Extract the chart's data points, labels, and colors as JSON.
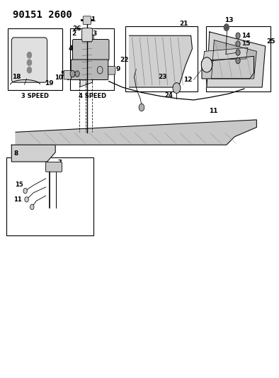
{
  "title": "90151 2600",
  "bg_color": "#ffffff",
  "line_color": "#000000",
  "title_fontsize": 10,
  "label_fontsize": 6.5,
  "caption_fontsize": 6
}
